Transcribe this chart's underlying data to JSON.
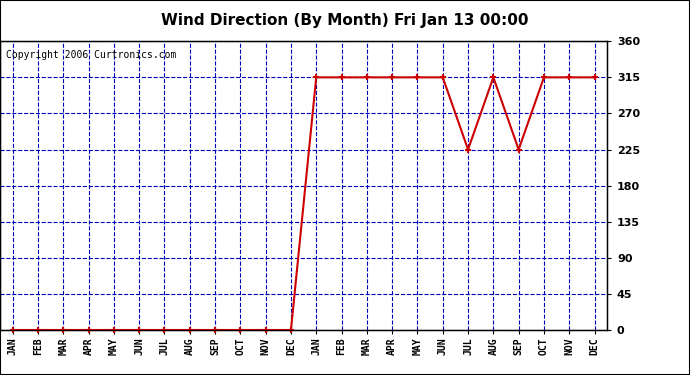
{
  "title": "Wind Direction (By Month) Fri Jan 13 00:00",
  "copyright": "Copyright 2006 Curtronics.com",
  "x_labels": [
    "JAN",
    "FEB",
    "MAR",
    "APR",
    "MAY",
    "JUN",
    "JUL",
    "AUG",
    "SEP",
    "OCT",
    "NOV",
    "DEC",
    "JAN",
    "FEB",
    "MAR",
    "APR",
    "MAY",
    "JUN",
    "JUL",
    "AUG",
    "SEP",
    "OCT",
    "NOV",
    "DEC"
  ],
  "y_values": [
    0,
    0,
    0,
    0,
    0,
    0,
    0,
    0,
    0,
    0,
    0,
    0,
    315,
    315,
    315,
    315,
    315,
    315,
    225,
    315,
    225,
    315,
    315,
    315
  ],
  "ylim": [
    0,
    360
  ],
  "yticks": [
    0,
    45,
    90,
    135,
    180,
    225,
    270,
    315,
    360
  ],
  "line_color": "#cc0000",
  "marker_color": "#cc0000",
  "grid_color": "#0000bb",
  "bg_color": "#ffffff",
  "title_fontsize": 11,
  "copyright_fontsize": 7
}
